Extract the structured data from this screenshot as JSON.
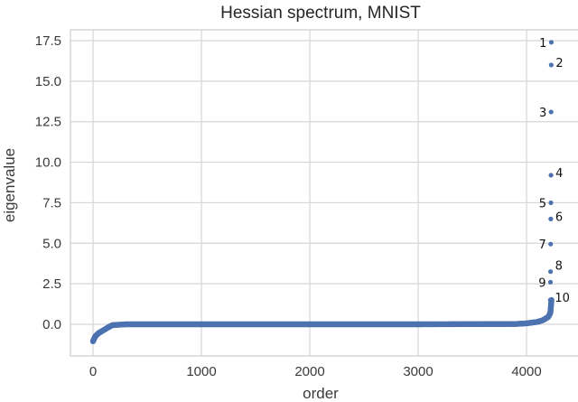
{
  "chart_data": {
    "type": "scatter",
    "title": "Hessian spectrum, MNIST",
    "xlabel": "order",
    "ylabel": "eigenvalue",
    "xlim": [
      -210,
      4500
    ],
    "ylim": [
      -1.95,
      19.25
    ],
    "xticks": [
      0,
      1000,
      2000,
      3000,
      4000
    ],
    "xtick_labels": [
      "0",
      "1000",
      "2000",
      "3000",
      "4000"
    ],
    "yticks": [
      0.0,
      2.5,
      5.0,
      7.5,
      10.0,
      12.5,
      15.0,
      17.5
    ],
    "ytick_labels": [
      "0.0",
      "2.5",
      "5.0",
      "7.5",
      "10.0",
      "12.5",
      "15.0",
      "17.5"
    ],
    "grid": true,
    "marker_color": "#4c72b0",
    "bulk_curve": {
      "description": "sorted eigenvalues; near-zero bulk",
      "x": [
        0,
        20,
        50,
        100,
        150,
        180,
        300,
        1000,
        2000,
        3000,
        3900,
        4000,
        4100,
        4150,
        4200,
        4220,
        4230
      ],
      "y": [
        -1.05,
        -0.75,
        -0.55,
        -0.35,
        -0.15,
        -0.05,
        0.0,
        0.0,
        0.0,
        0.0,
        0.02,
        0.06,
        0.15,
        0.25,
        0.45,
        0.7,
        1.5
      ]
    },
    "top_eigenvalues": [
      {
        "rank": "1",
        "x": 4233,
        "y": 17.4
      },
      {
        "rank": "2",
        "x": 4232,
        "y": 16.0
      },
      {
        "rank": "3",
        "x": 4231,
        "y": 13.1
      },
      {
        "rank": "4",
        "x": 4230,
        "y": 9.2
      },
      {
        "rank": "5",
        "x": 4229,
        "y": 7.5
      },
      {
        "rank": "6",
        "x": 4228,
        "y": 6.5
      },
      {
        "rank": "7",
        "x": 4227,
        "y": 4.95
      },
      {
        "rank": "8",
        "x": 4226,
        "y": 3.25
      },
      {
        "rank": "9",
        "x": 4225,
        "y": 2.6
      },
      {
        "rank": "10",
        "x": 4224,
        "y": 1.5
      }
    ],
    "annotation_side": [
      "left",
      "right",
      "left",
      "right",
      "left",
      "right",
      "left",
      "right",
      "left",
      "right"
    ]
  }
}
